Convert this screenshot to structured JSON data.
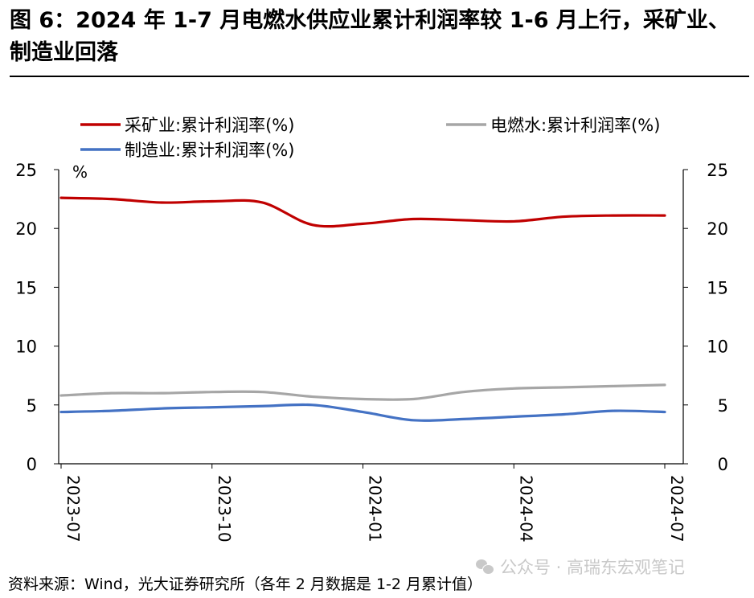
{
  "title": "图 6：2024 年 1-7 月电燃水供应业累计利润率较 1-6 月上行，采矿业、制造业回落",
  "source": "资料来源：Wind，光大证券研究所（各年 2 月数据是 1-2 月累计值）",
  "watermark": "公众号 · 高瑞东宏观笔记",
  "watermark_icon": "wechat-icon",
  "chart_data": {
    "type": "line",
    "unit_label": "%",
    "ylim": [
      0,
      25
    ],
    "yticks": [
      0,
      5,
      10,
      15,
      20,
      25
    ],
    "x": [
      "2023-07",
      "2023-08",
      "2023-09",
      "2023-10",
      "2023-11",
      "2023-12",
      "2024-01",
      "2024-02",
      "2024-03",
      "2024-04",
      "2024-05",
      "2024-06",
      "2024-07"
    ],
    "xtick_labels": [
      "2023-07",
      "2023-10",
      "2024-01",
      "2024-04",
      "2024-07"
    ],
    "legend_position": "top",
    "grid": false,
    "series": [
      {
        "name": "采矿业:累计利润率(%)",
        "color": "#c00000",
        "values": [
          22.6,
          22.5,
          22.2,
          22.3,
          22.2,
          20.3,
          20.4,
          20.8,
          20.7,
          20.6,
          21.0,
          21.1,
          21.1
        ]
      },
      {
        "name": "电燃水:累计利润率(%)",
        "color": "#a6a6a6",
        "values": [
          5.8,
          6.0,
          6.0,
          6.1,
          6.1,
          5.7,
          5.5,
          5.5,
          6.1,
          6.4,
          6.5,
          6.6,
          6.7
        ]
      },
      {
        "name": "制造业:累计利润率(%)",
        "color": "#4472c4",
        "values": [
          4.4,
          4.5,
          4.7,
          4.8,
          4.9,
          5.0,
          4.4,
          3.7,
          3.8,
          4.0,
          4.2,
          4.5,
          4.4
        ]
      }
    ]
  }
}
